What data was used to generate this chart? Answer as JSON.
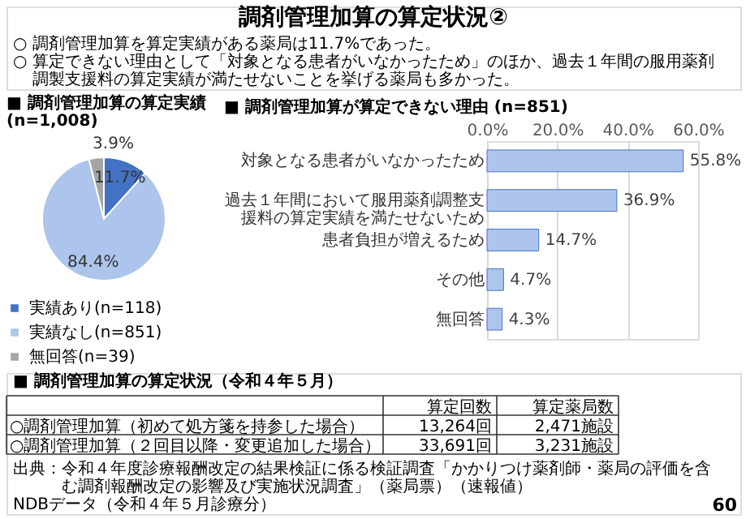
{
  "chart_data": [
    {
      "type": "other",
      "title": "調剤管理加算の算定状況②",
      "annotations": [
        "○ 調剤管理加算を算定実績がある薬局は11.7%であった。",
        "○ 算定できない理由として「対象となる患者がいなかったため」のほか、過去１年間の服用薬剤調製支援料の算定実績が満たせないことを挙げる薬局も多かった。"
      ]
    },
    {
      "type": "pie",
      "title": "■ 調剤管理加算の算定実績 (n=1,008)",
      "categories": [
        "実績あり(n=118)",
        "実績なし(n=851)",
        "無回答(n=39)"
      ],
      "values": [
        11.7,
        84.4,
        3.9
      ],
      "colors": [
        "#4472c4",
        "#adc5ec",
        "#a5a5a5"
      ],
      "value_labels": [
        "11.7%",
        "84.4%",
        "3.9%"
      ],
      "legend": "bottom"
    },
    {
      "type": "bar",
      "orientation": "horizontal",
      "title": "■ 調剤管理加算が算定できない理由 (n=851)",
      "categories": [
        "対象となる患者がいなかったため",
        "過去１年間において服用薬剤調整支援料の算定実績を満たせないため",
        "患者負担が増えるため",
        "その他",
        "無回答"
      ],
      "values": [
        55.8,
        36.9,
        14.7,
        4.7,
        4.3
      ],
      "color": "#adc5ec",
      "value_labels": [
        "55.8%",
        "36.9%",
        "14.7%",
        "4.7%",
        "4.3%"
      ],
      "xlim": [
        0,
        60
      ],
      "xticks": [
        {
          "value": 0,
          "label": "0.0%"
        },
        {
          "value": 20,
          "label": "20.0%"
        },
        {
          "value": 40,
          "label": "40.0%"
        },
        {
          "value": 60,
          "label": "60.0%"
        }
      ],
      "grid": "x"
    },
    {
      "type": "other",
      "title": "■ 調剤管理加算の算定状況（令和４年５月）",
      "categories": [
        "算定回数",
        "算定薬局数"
      ],
      "y_categories": [
        "○調剤管理加算（初めて処方箋を持参した場合）",
        "○調剤管理加算（２回目以降・変更追加した場合）"
      ],
      "cell_labels": [
        [
          "13,264回",
          "2,471施設"
        ],
        [
          "33,691回",
          "3,231施設"
        ]
      ],
      "annotations": [
        "出典：令和４年度診療報酬改定の結果検証に係る検証調査「かかりつけ薬剤師・薬局の評価を含む調剤報酬改定の影響及び実施状況調査」（薬局票）（速報値）",
        "NDBデータ（令和４年５月診療分）",
        "60"
      ]
    }
  ]
}
